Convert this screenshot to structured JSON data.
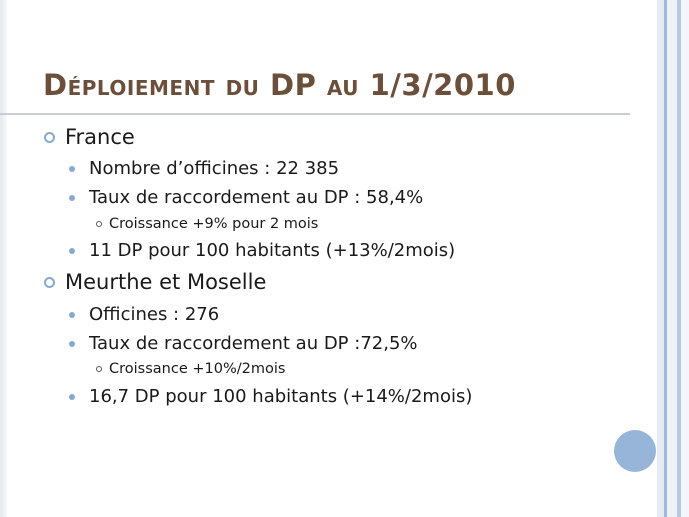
{
  "slide": {
    "title": "Déploiement du DP au 1/3/2010",
    "colors": {
      "title": "#6b4f3a",
      "bullet": "#86a9d2",
      "circle": "#97b5d9",
      "rule": "#c9ccd2"
    },
    "sections": [
      {
        "heading": "France",
        "items": [
          {
            "text": "Nombre d’officines : 22 385"
          },
          {
            "text": "Taux de raccordement au DP : 58,4%",
            "sub": "Croissance +9% pour 2 mois"
          },
          {
            "text": "11 DP pour 100 habitants (+13%/2mois)"
          }
        ]
      },
      {
        "heading": "Meurthe et Moselle",
        "items": [
          {
            "text": "Officines : 276"
          },
          {
            "text": "Taux de raccordement au DP :72,5%",
            "sub": "Croissance +10%/2mois"
          },
          {
            "text": "16,7 DP pour 100 habitants (+14%/2mois)"
          }
        ]
      }
    ]
  }
}
